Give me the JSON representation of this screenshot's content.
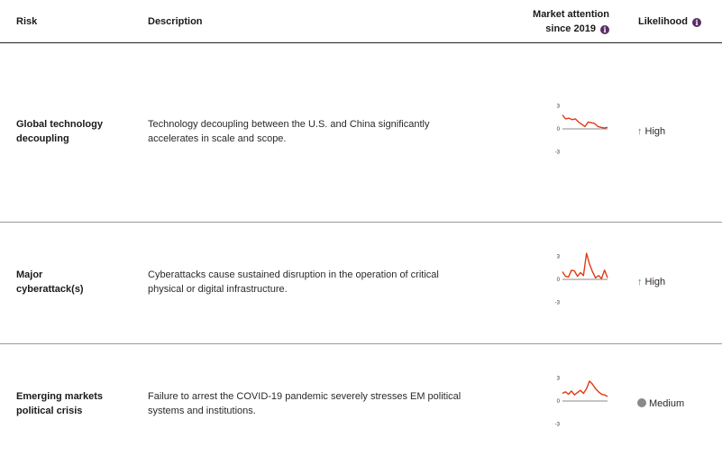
{
  "header": {
    "risk": "Risk",
    "description": "Description",
    "market_line1": "Market attention",
    "market_line2": "since 2019",
    "likelihood": "Likelihood",
    "info_icon": "i"
  },
  "rows": [
    {
      "name_line1": "Global technology",
      "name_line2": "decoupling",
      "desc_line1": "Technology decoupling between the U.S. and China significantly",
      "desc_line2": "accelerates in scale and scope.",
      "likelihood": "High",
      "likelihood_icon": "arrow-up-icon",
      "spark": {
        "ymax": "3",
        "ymid": "0",
        "ymin": "-3",
        "values": [
          1.8,
          1.3,
          1.4,
          1.2,
          1.3,
          0.9,
          0.6,
          0.3,
          0.9,
          0.8,
          0.7,
          0.3,
          0.2,
          0.1,
          0.2
        ]
      }
    },
    {
      "name_line1": "Major",
      "name_line2": "cyberattack(s)",
      "desc_line1": "Cyberattacks cause sustained disruption in the operation of critical",
      "desc_line2": "physical or digital infrastructure.",
      "likelihood": "High",
      "likelihood_icon": "arrow-up-icon",
      "spark": {
        "ymax": "3",
        "ymid": "0",
        "ymin": "-3",
        "values": [
          1.0,
          0.4,
          0.3,
          1.2,
          1.1,
          0.4,
          0.9,
          0.5,
          3.4,
          2.0,
          1.0,
          0.2,
          0.5,
          0.1,
          1.2,
          0.2
        ]
      }
    },
    {
      "name_line1": "Emerging markets",
      "name_line2": "political crisis",
      "desc_line1": "Failure to arrest the COVID-19 pandemic severely stresses EM political",
      "desc_line2": "systems and institutions.",
      "likelihood": "Medium",
      "likelihood_icon": "gray-dot-icon",
      "spark": {
        "ymax": "3",
        "ymid": "0",
        "ymin": "-3",
        "values": [
          1.0,
          1.2,
          0.9,
          1.3,
          0.8,
          1.1,
          1.4,
          1.0,
          1.6,
          2.6,
          2.2,
          1.6,
          1.2,
          0.9,
          0.8,
          0.6
        ]
      }
    }
  ],
  "colors": {
    "spark_line": "#e03a12",
    "high_arrow": "#1f9a5a",
    "medium_dot": "#8a8a8a",
    "info_icon": "#5a2d66"
  }
}
